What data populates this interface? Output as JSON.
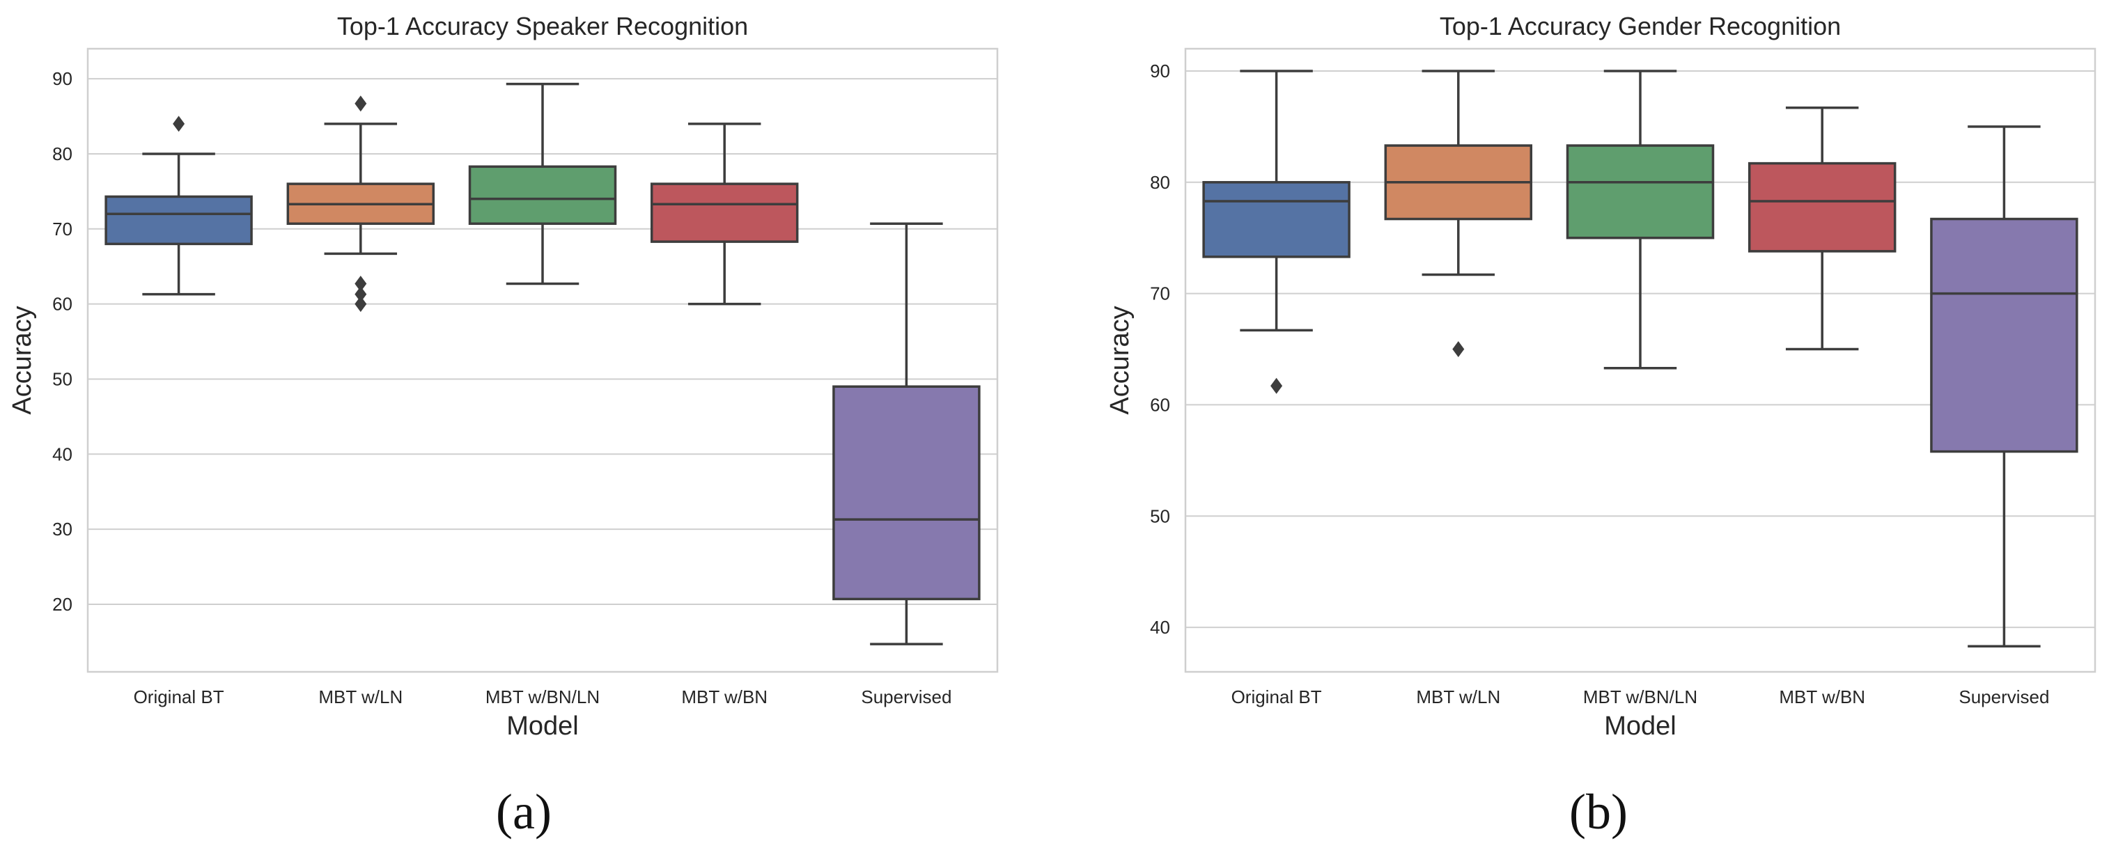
{
  "figure": {
    "panel_labels": [
      "(a)",
      "(b)"
    ]
  },
  "chart_data": [
    {
      "type": "box",
      "title": "Top-1 Accuracy Speaker Recognition",
      "xlabel": "Model",
      "ylabel": "Accuracy",
      "ylim": [
        11,
        94
      ],
      "yticks": [
        20,
        30,
        40,
        50,
        60,
        70,
        80,
        90
      ],
      "grid": true,
      "categories": [
        "Original BT",
        "MBT w/LN",
        "MBT w/BN/LN",
        "MBT w/BN",
        "Supervised"
      ],
      "colors": [
        "#5573a4",
        "#d08862",
        "#5f9e6e",
        "#bd575d",
        "#8679ae"
      ],
      "boxes": [
        {
          "whislo": 61.3,
          "q1": 68.0,
          "median": 72.0,
          "q3": 74.3,
          "whishi": 80.0,
          "fliers": [
            84.0
          ]
        },
        {
          "whislo": 66.7,
          "q1": 70.7,
          "median": 73.3,
          "q3": 76.0,
          "whishi": 84.0,
          "fliers": [
            86.7,
            62.7,
            61.3,
            60.0
          ]
        },
        {
          "whislo": 62.7,
          "q1": 70.7,
          "median": 74.0,
          "q3": 78.3,
          "whishi": 89.3,
          "fliers": []
        },
        {
          "whislo": 60.0,
          "q1": 68.3,
          "median": 73.3,
          "q3": 76.0,
          "whishi": 84.0,
          "fliers": []
        },
        {
          "whislo": 14.7,
          "q1": 20.7,
          "median": 31.3,
          "q3": 49.0,
          "whishi": 70.7,
          "fliers": []
        }
      ]
    },
    {
      "type": "box",
      "title": "Top-1 Accuracy Gender Recognition",
      "xlabel": "Model",
      "ylabel": "Accuracy",
      "ylim": [
        36,
        92
      ],
      "yticks": [
        40,
        50,
        60,
        70,
        80,
        90
      ],
      "grid": true,
      "categories": [
        "Original BT",
        "MBT w/LN",
        "MBT w/BN/LN",
        "MBT w/BN",
        "Supervised"
      ],
      "colors": [
        "#5573a4",
        "#d08862",
        "#5f9e6e",
        "#bd575d",
        "#8679ae"
      ],
      "boxes": [
        {
          "whislo": 66.7,
          "q1": 73.3,
          "median": 78.3,
          "q3": 80.0,
          "whishi": 90.0,
          "fliers": [
            61.7
          ]
        },
        {
          "whislo": 71.7,
          "q1": 76.7,
          "median": 80.0,
          "q3": 83.3,
          "whishi": 90.0,
          "fliers": [
            65.0
          ]
        },
        {
          "whislo": 63.3,
          "q1": 75.0,
          "median": 80.0,
          "q3": 83.3,
          "whishi": 90.0,
          "fliers": []
        },
        {
          "whislo": 65.0,
          "q1": 73.8,
          "median": 78.3,
          "q3": 81.7,
          "whishi": 86.7,
          "fliers": []
        },
        {
          "whislo": 38.3,
          "q1": 55.8,
          "median": 70.0,
          "q3": 76.7,
          "whishi": 85.0,
          "fliers": []
        }
      ]
    }
  ]
}
